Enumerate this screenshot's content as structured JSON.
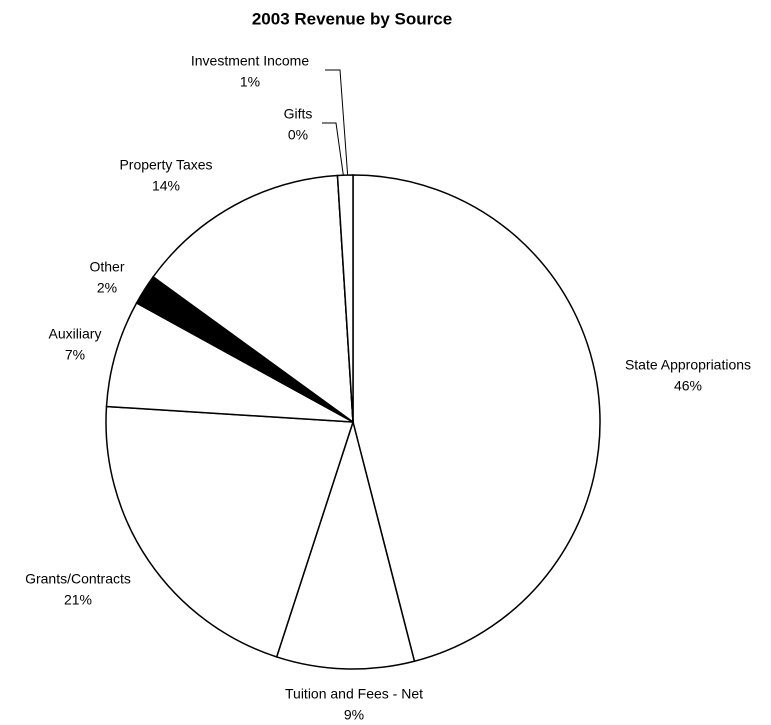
{
  "chart_data": {
    "type": "pie",
    "title": "2003 Revenue by Source",
    "categories": [
      "State Appropriations",
      "Tuition and Fees - Net",
      "Grants/Contracts",
      "Auxiliary",
      "Other",
      "Property Taxes",
      "Gifts",
      "Investment Income"
    ],
    "values": [
      46,
      9,
      21,
      7,
      2,
      14,
      0,
      1
    ],
    "value_labels": [
      "46%",
      "9%",
      "21%",
      "7%",
      "2%",
      "14%",
      "0%",
      "1%"
    ],
    "colors": [
      "#ffffff",
      "#ffffff",
      "#ffffff",
      "#ffffff",
      "#000000",
      "#ffffff",
      "#ffffff",
      "#ffffff"
    ]
  }
}
